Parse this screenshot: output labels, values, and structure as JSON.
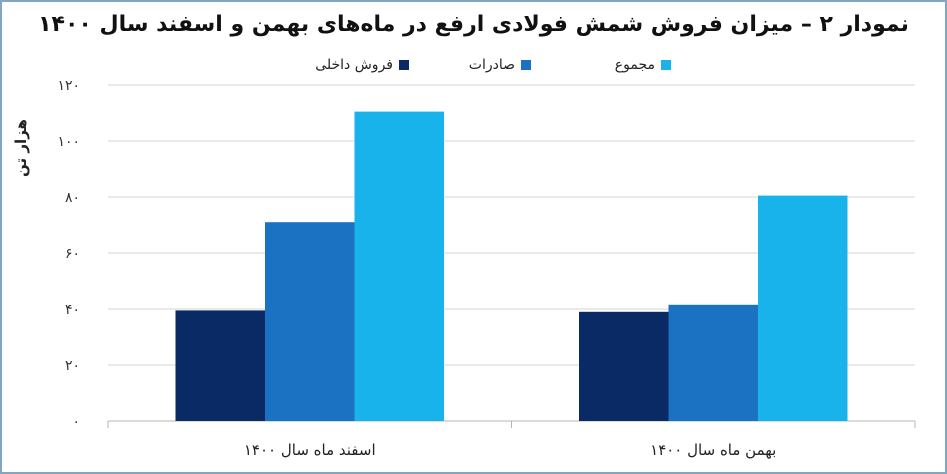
{
  "chart_data": {
    "type": "bar",
    "title": "نمودار ۲ – میزان فروش شمش فولادی ارفع در ماه‌های بهمن و اسفند سال ۱۴۰۰",
    "ylabel": "هزار تن",
    "xlabel": "",
    "categories": [
      "اسفند ماه سال ۱۴۰۰",
      "بهمن ماه سال ۱۴۰۰"
    ],
    "series": [
      {
        "name": "فروش داخلی",
        "values": [
          39.5,
          39
        ],
        "color": "#0a2a66"
      },
      {
        "name": "صادرات",
        "values": [
          71,
          41.5
        ],
        "color": "#1b71c2"
      },
      {
        "name": "مجموع",
        "values": [
          110.5,
          80.5
        ],
        "color": "#19b3ec"
      }
    ],
    "ylim": [
      0,
      120
    ],
    "yticks": [
      0,
      20,
      40,
      60,
      80,
      100,
      120
    ],
    "ytick_labels": [
      "۰",
      "۲۰",
      "۴۰",
      "۶۰",
      "۸۰",
      "۱۰۰",
      "۱۲۰"
    ],
    "grid": true,
    "legend_position": "top"
  }
}
